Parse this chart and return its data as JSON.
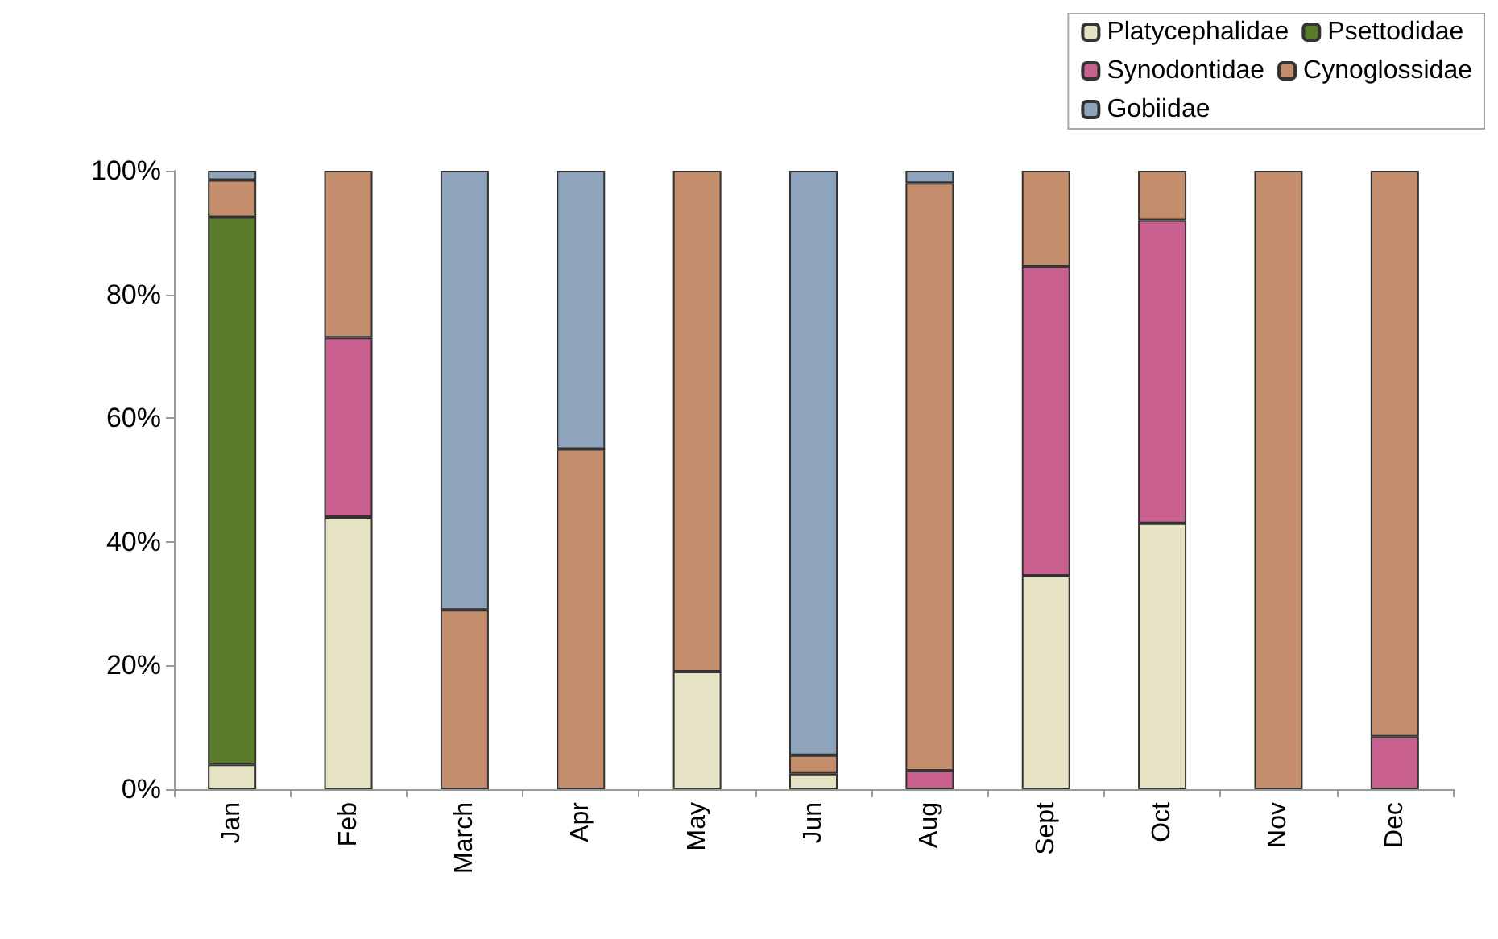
{
  "chart_data": {
    "type": "bar",
    "stacked": true,
    "categories": [
      "Jan",
      "Feb",
      "March",
      "Apr",
      "May",
      "Jun",
      "Aug",
      "Sept",
      "Oct",
      "Nov",
      "Dec"
    ],
    "series": [
      {
        "name": "Platycephalidae",
        "color": "#e6e2c4",
        "values": [
          4,
          44,
          null,
          null,
          19,
          2.5,
          null,
          34.5,
          43,
          null,
          null
        ]
      },
      {
        "name": "Psettodidae",
        "color": "#5b7a2a",
        "values": [
          88.5,
          null,
          null,
          null,
          null,
          null,
          null,
          null,
          null,
          null,
          null
        ]
      },
      {
        "name": "Synodontidae",
        "color": "#c95f8f",
        "values": [
          null,
          29,
          null,
          null,
          null,
          null,
          3,
          50,
          49,
          null,
          8.5
        ]
      },
      {
        "name": "Cynoglossidae",
        "color": "#c48d6c",
        "values": [
          6,
          27,
          29,
          55,
          81,
          3,
          95,
          15.5,
          8,
          100,
          91.5
        ]
      },
      {
        "name": "Gobiidae",
        "color": "#8ea4bc",
        "values": [
          1.5,
          null,
          71,
          45,
          null,
          94.5,
          2,
          null,
          null,
          null,
          null
        ]
      }
    ],
    "ylim": [
      0,
      100
    ],
    "yticks": [
      {
        "value": 0,
        "label": "0%"
      },
      {
        "value": 20,
        "label": "20%"
      },
      {
        "value": 40,
        "label": "40%"
      },
      {
        "value": 60,
        "label": "60%"
      },
      {
        "value": 80,
        "label": "80%"
      },
      {
        "value": 100,
        "label": "100%"
      }
    ],
    "grid": false,
    "legend": "top right"
  }
}
